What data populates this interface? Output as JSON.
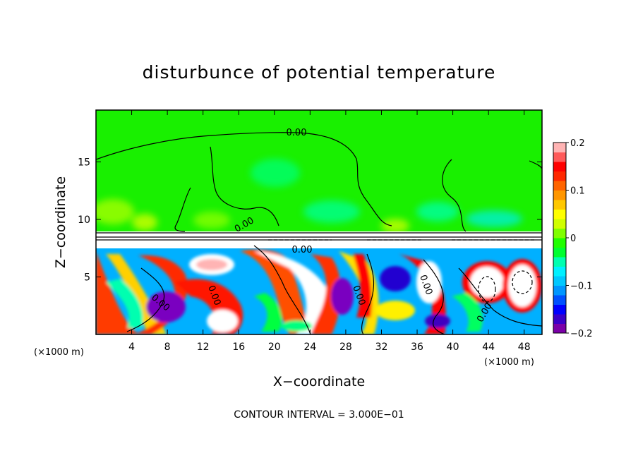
{
  "chart_data": {
    "type": "heatmap",
    "title": "disturbunce of potential temperature",
    "xlabel": "X−coordinate",
    "ylabel": "Z−coordinate",
    "x_unit_label": "(×1000 m)",
    "x_unit_label_right": "(×1000 m)",
    "xlim": [
      0,
      50
    ],
    "ylim": [
      0,
      19.5
    ],
    "x_ticks": [
      4,
      8,
      12,
      16,
      20,
      24,
      28,
      32,
      36,
      40,
      44,
      48
    ],
    "y_ticks": [
      5,
      10,
      15
    ],
    "colorbar": {
      "range": [
        -0.2,
        0.2
      ],
      "tick_labels": [
        "0.2",
        "0.1",
        "0",
        "−0.1",
        "−0.2"
      ],
      "tick_values": [
        0.2,
        0.1,
        0,
        -0.1,
        -0.2
      ],
      "colors": [
        "#7b00a8",
        "#3a00c8",
        "#0000ff",
        "#0050ff",
        "#0096ff",
        "#00c8ff",
        "#00f0ff",
        "#00ffb0",
        "#00ff30",
        "#20ff00",
        "#80ff00",
        "#d0ff00",
        "#ffff00",
        "#ffc800",
        "#ff9600",
        "#ff6400",
        "#ff2800",
        "#ff0000",
        "#ff5a5a",
        "#ffb4b4"
      ]
    },
    "contour_labels": [
      "0.00",
      "0.00",
      "0.00",
      "0.00",
      "0.00",
      "0.00",
      "0.00",
      "0.00"
    ],
    "contour_interval_text": "CONTOUR INTERVAL = 3.000E−01",
    "grid": false
  }
}
